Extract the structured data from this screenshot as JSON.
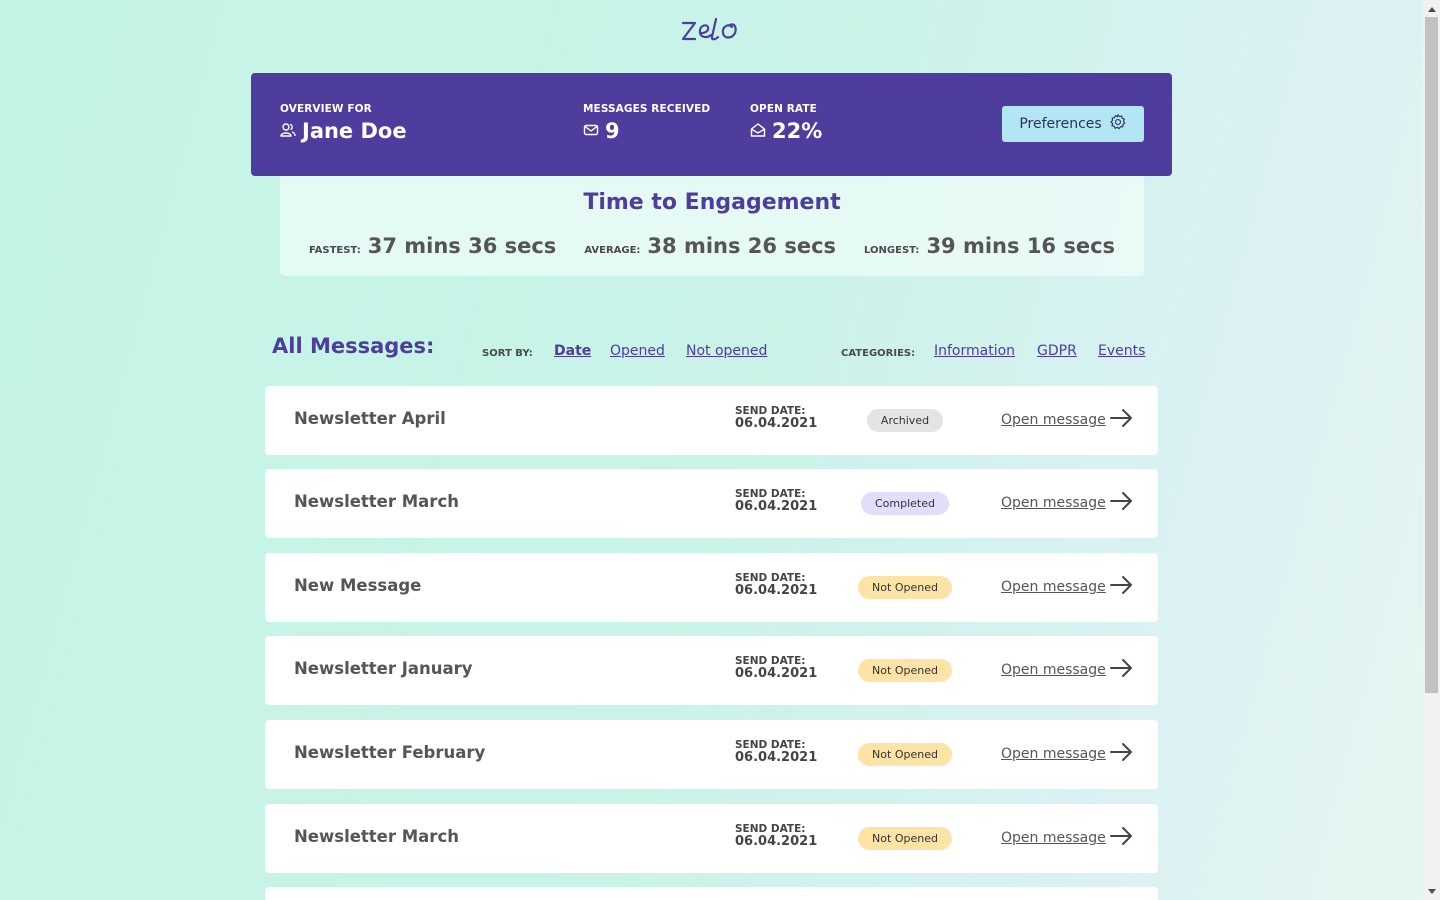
{
  "brand": {
    "logo_text": "zelo"
  },
  "overview": {
    "label": "OVERVIEW FOR",
    "user_name": "Jane Doe",
    "messages_label": "MESSAGES RECEIVED",
    "messages_value": "9",
    "open_rate_label": "OPEN RATE",
    "open_rate_value": "22%",
    "preferences_label": "Preferences"
  },
  "engagement": {
    "title": "Time to Engagement",
    "fastest_label": "FASTEST:",
    "fastest_value": "37 mins 36 secs",
    "average_label": "AVERAGE:",
    "average_value": "38 mins 26 secs",
    "longest_label": "LONGEST:",
    "longest_value": "39 mins 16 secs"
  },
  "messages": {
    "title": "All Messages:",
    "sort_label": "SORT BY:",
    "sort_options": [
      "Date",
      "Opened",
      "Not opened"
    ],
    "categories_label": "CATEGORIES:",
    "categories": [
      "Information",
      "GDPR",
      "Events"
    ],
    "send_date_label": "SEND DATE:",
    "open_label": "Open message",
    "items": [
      {
        "title": "Newsletter April",
        "date": "06.04.2021",
        "status": "Archived"
      },
      {
        "title": "Newsletter March",
        "date": "06.04.2021",
        "status": "Completed"
      },
      {
        "title": "New Message",
        "date": "06.04.2021",
        "status": "Not Opened"
      },
      {
        "title": "Newsletter January",
        "date": "06.04.2021",
        "status": "Not Opened"
      },
      {
        "title": "Newsletter February",
        "date": "06.04.2021",
        "status": "Not Opened"
      },
      {
        "title": "Newsletter March",
        "date": "06.04.2021",
        "status": "Not Opened"
      }
    ]
  },
  "colors": {
    "brand_purple": "#4e3d9c",
    "badge_archived": "#e4e4e4",
    "badge_completed": "#e4dcfb",
    "badge_not_opened": "#fde3a5",
    "preferences_bg": "#b3e6f5"
  }
}
